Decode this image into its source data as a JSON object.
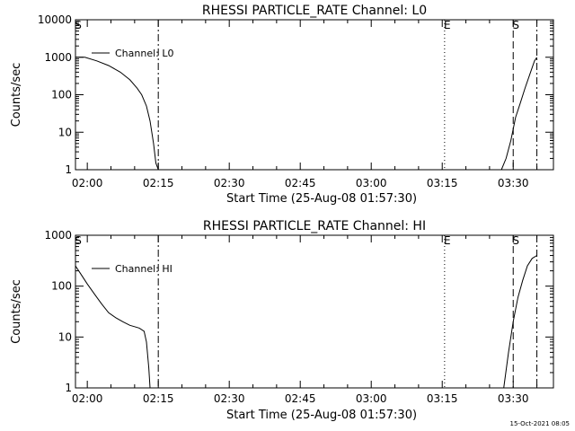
{
  "footer_date": "15-Oct-2021 08:05",
  "chart_data": [
    {
      "type": "line",
      "title": "RHESSI PARTICLE_RATE Channel: L0",
      "xlabel": "Start Time (25-Aug-08 01:57:30)",
      "ylabel": "Counts/sec",
      "yscale": "log",
      "ylim": [
        1,
        10000
      ],
      "xlim": [
        "01:57:30",
        "03:38:30"
      ],
      "grid": false,
      "legend": {
        "position": "top-left",
        "label": "Channel: L0"
      },
      "x_ticks": [
        "02:00",
        "02:15",
        "02:30",
        "02:45",
        "03:00",
        "03:15",
        "03:30"
      ],
      "y_ticks": [
        "1",
        "10",
        "100",
        "1000",
        "10000"
      ],
      "markers": [
        {
          "label": "S",
          "time": "01:57:30",
          "style": "dashed"
        },
        {
          "label": "",
          "time": "02:15:00",
          "style": "dash-dot"
        },
        {
          "label": "E",
          "time": "03:15:30",
          "style": "dotted"
        },
        {
          "label": "S",
          "time": "03:30:00",
          "style": "dashed"
        },
        {
          "label": "",
          "time": "03:35:00",
          "style": "dash-dot"
        }
      ],
      "series": [
        {
          "name": "Channel: L0",
          "segments": [
            {
              "x": [
                "01:57:30",
                "01:59:30",
                "02:02:00",
                "02:04:30",
                "02:07:00",
                "02:09:00",
                "02:10:30",
                "02:11:30",
                "02:12:30",
                "02:13:15",
                "02:14:00",
                "02:14:30",
                "02:15:00"
              ],
              "y": [
                1000,
                1000,
                800,
                600,
                400,
                250,
                150,
                100,
                50,
                20,
                5,
                1.5,
                1
              ]
            },
            {
              "x": [
                "03:27:30",
                "03:28:30",
                "03:29:30",
                "03:30:30",
                "03:31:30",
                "03:32:30",
                "03:33:30",
                "03:34:30",
                "03:35:00"
              ],
              "y": [
                1,
                2,
                6,
                25,
                60,
                150,
                350,
                800,
                1000
              ]
            }
          ]
        }
      ]
    },
    {
      "type": "line",
      "title": "RHESSI PARTICLE_RATE Channel: HI",
      "xlabel": "Start Time (25-Aug-08 01:57:30)",
      "ylabel": "Counts/sec",
      "yscale": "log",
      "ylim": [
        1,
        1000
      ],
      "xlim": [
        "01:57:30",
        "03:38:30"
      ],
      "grid": false,
      "legend": {
        "position": "top-left",
        "label": "Channel: HI"
      },
      "x_ticks": [
        "02:00",
        "02:15",
        "02:30",
        "02:45",
        "03:00",
        "03:15",
        "03:30"
      ],
      "y_ticks": [
        "1",
        "10",
        "100",
        "1000"
      ],
      "markers": [
        {
          "label": "S",
          "time": "01:57:30",
          "style": "dashed"
        },
        {
          "label": "",
          "time": "02:15:00",
          "style": "dash-dot"
        },
        {
          "label": "E",
          "time": "03:15:30",
          "style": "dotted"
        },
        {
          "label": "S",
          "time": "03:30:00",
          "style": "dashed"
        },
        {
          "label": "",
          "time": "03:35:00",
          "style": "dash-dot"
        }
      ],
      "series": [
        {
          "name": "Channel: HI",
          "segments": [
            {
              "x": [
                "01:57:30",
                "01:58:30",
                "02:00:00",
                "02:01:30",
                "02:03:00",
                "02:04:30",
                "02:06:00",
                "02:07:30",
                "02:09:00",
                "02:10:00",
                "02:11:00",
                "02:12:00",
                "02:12:30",
                "02:13:00",
                "02:13:15"
              ],
              "y": [
                250,
                180,
                110,
                70,
                45,
                30,
                24,
                20,
                17,
                16,
                15,
                13,
                8,
                2.5,
                1
              ]
            },
            {
              "x": [
                "03:28:00",
                "03:29:00",
                "03:30:00",
                "03:31:00",
                "03:32:00",
                "03:33:00",
                "03:34:00",
                "03:35:00"
              ],
              "y": [
                1,
                5,
                20,
                60,
                130,
                250,
                350,
                400
              ]
            }
          ]
        }
      ]
    }
  ]
}
